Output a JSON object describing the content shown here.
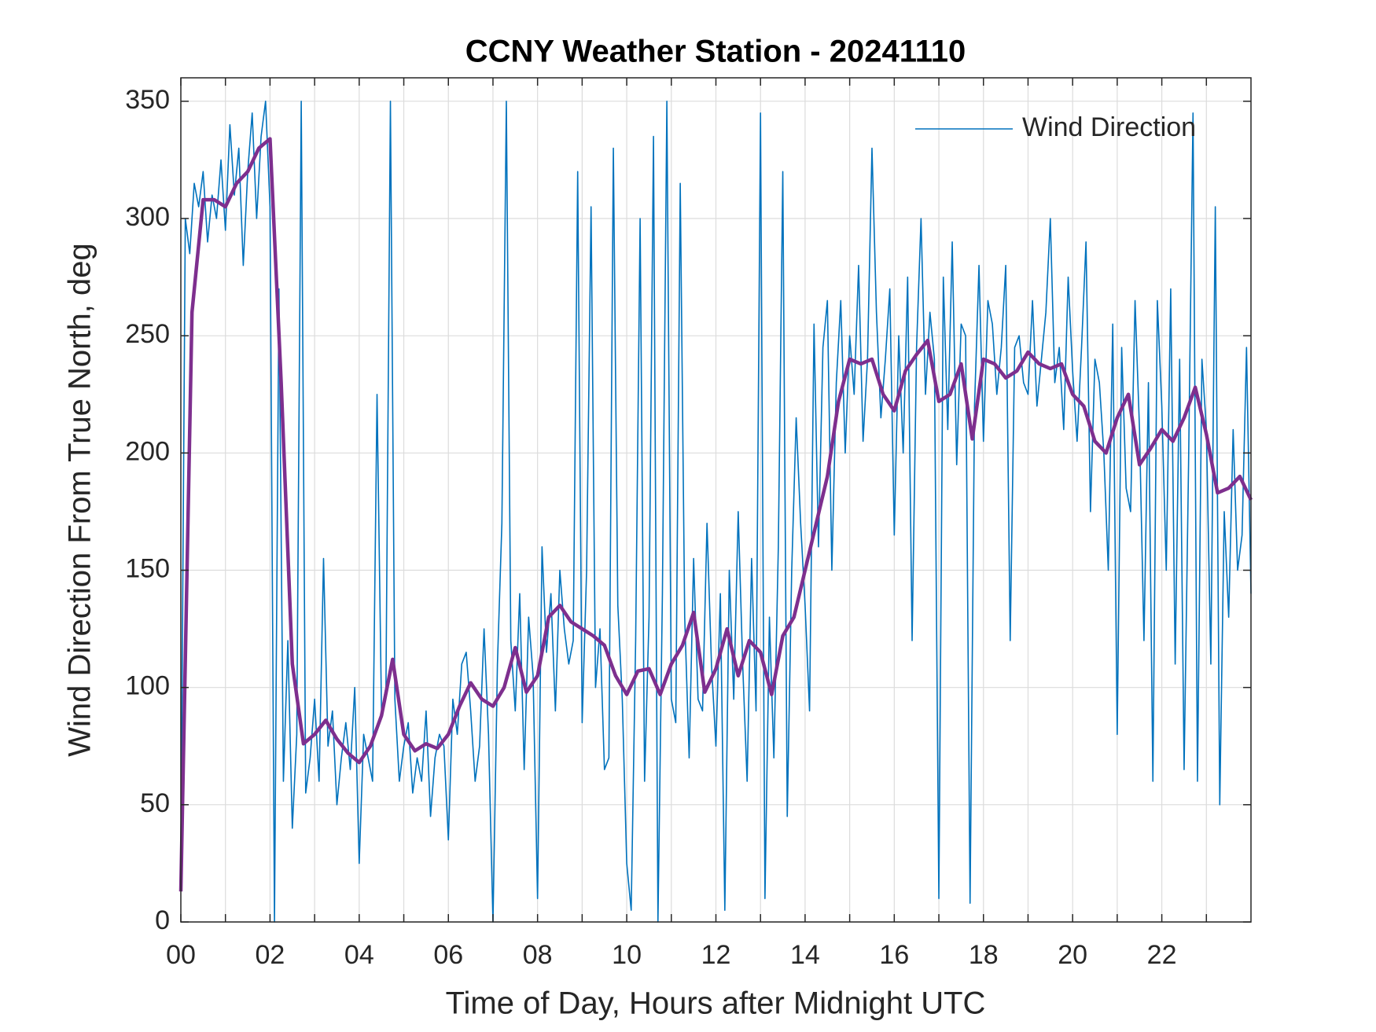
{
  "chart_data": {
    "type": "line",
    "title": "CCNY Weather Station - 20241110",
    "xlabel": "Time of Day, Hours after Midnight UTC",
    "ylabel": "Wind Direction From True North, deg",
    "xlim": [
      0,
      24
    ],
    "ylim": [
      0,
      360
    ],
    "xticks": [
      {
        "value": 0,
        "label": "00"
      },
      {
        "value": 2,
        "label": "02"
      },
      {
        "value": 4,
        "label": "04"
      },
      {
        "value": 6,
        "label": "06"
      },
      {
        "value": 8,
        "label": "08"
      },
      {
        "value": 10,
        "label": "10"
      },
      {
        "value": 12,
        "label": "12"
      },
      {
        "value": 14,
        "label": "14"
      },
      {
        "value": 16,
        "label": "16"
      },
      {
        "value": 18,
        "label": "18"
      },
      {
        "value": 20,
        "label": "20"
      },
      {
        "value": 22,
        "label": "22"
      }
    ],
    "xminorticks": [
      1,
      3,
      5,
      7,
      9,
      11,
      13,
      15,
      17,
      19,
      21,
      23
    ],
    "yticks": [
      0,
      50,
      100,
      150,
      200,
      250,
      300,
      350
    ],
    "grid": true,
    "legend": "northeast",
    "series": [
      {
        "name": "Wind Direction",
        "color": "#0072bd",
        "width": 1.6,
        "x": [
          0,
          0.1,
          0.2,
          0.3,
          0.4,
          0.5,
          0.6,
          0.7,
          0.8,
          0.9,
          1,
          1.1,
          1.2,
          1.3,
          1.4,
          1.5,
          1.6,
          1.7,
          1.8,
          1.9,
          2,
          2.1,
          2.2,
          2.3,
          2.4,
          2.5,
          2.6,
          2.7,
          2.8,
          2.9,
          3,
          3.1,
          3.2,
          3.3,
          3.4,
          3.5,
          3.6,
          3.7,
          3.8,
          3.9,
          4,
          4.1,
          4.2,
          4.3,
          4.4,
          4.5,
          4.6,
          4.7,
          4.8,
          4.9,
          5,
          5.1,
          5.2,
          5.3,
          5.4,
          5.5,
          5.6,
          5.7,
          5.8,
          5.9,
          6,
          6.1,
          6.2,
          6.3,
          6.4,
          6.5,
          6.6,
          6.7,
          6.8,
          6.9,
          7,
          7.1,
          7.2,
          7.3,
          7.4,
          7.5,
          7.6,
          7.7,
          7.8,
          7.9,
          8,
          8.1,
          8.2,
          8.3,
          8.4,
          8.5,
          8.6,
          8.7,
          8.8,
          8.9,
          9,
          9.1,
          9.2,
          9.3,
          9.4,
          9.5,
          9.6,
          9.7,
          9.8,
          9.9,
          10,
          10.1,
          10.2,
          10.3,
          10.4,
          10.5,
          10.6,
          10.7,
          10.8,
          10.9,
          11,
          11.1,
          11.2,
          11.3,
          11.4,
          11.5,
          11.6,
          11.7,
          11.8,
          11.9,
          12,
          12.1,
          12.2,
          12.3,
          12.4,
          12.5,
          12.6,
          12.7,
          12.8,
          12.9,
          13,
          13.1,
          13.2,
          13.3,
          13.4,
          13.5,
          13.6,
          13.7,
          13.8,
          13.9,
          14,
          14.1,
          14.2,
          14.3,
          14.4,
          14.5,
          14.6,
          14.7,
          14.8,
          14.9,
          15,
          15.1,
          15.2,
          15.3,
          15.4,
          15.5,
          15.6,
          15.7,
          15.8,
          15.9,
          16,
          16.1,
          16.2,
          16.3,
          16.4,
          16.5,
          16.6,
          16.7,
          16.8,
          16.9,
          17,
          17.1,
          17.2,
          17.3,
          17.4,
          17.5,
          17.6,
          17.7,
          17.8,
          17.9,
          18,
          18.1,
          18.2,
          18.3,
          18.4,
          18.5,
          18.6,
          18.7,
          18.8,
          18.9,
          19,
          19.1,
          19.2,
          19.3,
          19.4,
          19.5,
          19.6,
          19.7,
          19.8,
          19.9,
          20,
          20.1,
          20.2,
          20.3,
          20.4,
          20.5,
          20.6,
          20.7,
          20.8,
          20.9,
          21,
          21.1,
          21.2,
          21.3,
          21.4,
          21.5,
          21.6,
          21.7,
          21.8,
          21.9,
          22,
          22.1,
          22.2,
          22.3,
          22.4,
          22.5,
          22.6,
          22.7,
          22.8,
          22.9,
          23,
          23.1,
          23.2,
          23.3,
          23.4,
          23.5,
          23.6,
          23.7,
          23.8,
          23.9,
          24
        ],
        "values": [
          20,
          300,
          285,
          315,
          305,
          320,
          290,
          310,
          300,
          325,
          295,
          340,
          310,
          330,
          280,
          320,
          345,
          300,
          335,
          350,
          305,
          0,
          270,
          60,
          120,
          40,
          80,
          350,
          55,
          70,
          95,
          60,
          155,
          75,
          90,
          50,
          70,
          85,
          65,
          100,
          25,
          80,
          70,
          60,
          225,
          90,
          100,
          350,
          95,
          60,
          75,
          85,
          55,
          70,
          60,
          90,
          45,
          70,
          80,
          75,
          35,
          95,
          80,
          110,
          115,
          90,
          60,
          75,
          125,
          80,
          0,
          110,
          170,
          350,
          120,
          90,
          140,
          65,
          130,
          105,
          10,
          160,
          115,
          140,
          90,
          150,
          125,
          110,
          120,
          320,
          85,
          150,
          305,
          100,
          125,
          65,
          70,
          330,
          135,
          95,
          25,
          5,
          120,
          300,
          60,
          130,
          335,
          0,
          140,
          350,
          95,
          85,
          315,
          130,
          70,
          155,
          95,
          90,
          170,
          110,
          75,
          140,
          5,
          150,
          95,
          175,
          110,
          60,
          155,
          90,
          345,
          10,
          130,
          70,
          160,
          320,
          45,
          150,
          215,
          170,
          135,
          90,
          255,
          160,
          245,
          265,
          150,
          230,
          265,
          200,
          250,
          225,
          280,
          205,
          240,
          330,
          260,
          215,
          240,
          270,
          165,
          250,
          200,
          275,
          120,
          245,
          300,
          225,
          260,
          240,
          10,
          275,
          210,
          290,
          195,
          255,
          250,
          8,
          220,
          280,
          205,
          265,
          255,
          225,
          245,
          280,
          120,
          245,
          250,
          230,
          225,
          265,
          220,
          240,
          260,
          300,
          230,
          245,
          210,
          275,
          235,
          205,
          245,
          290,
          175,
          240,
          230,
          200,
          150,
          255,
          80,
          245,
          185,
          175,
          265,
          210,
          120,
          230,
          60,
          265,
          220,
          150,
          270,
          110,
          240,
          65,
          195,
          345,
          60,
          240,
          210,
          110,
          305,
          50,
          175,
          130,
          210,
          150,
          165,
          245,
          140
        ]
      },
      {
        "color": "#7e2f8e",
        "width": 4.5,
        "x": [
          0,
          0.25,
          0.5,
          0.75,
          1,
          1.25,
          1.5,
          1.75,
          2,
          2.25,
          2.5,
          2.75,
          3,
          3.25,
          3.5,
          3.75,
          4,
          4.25,
          4.5,
          4.75,
          5,
          5.25,
          5.5,
          5.75,
          6,
          6.25,
          6.5,
          6.75,
          7,
          7.25,
          7.5,
          7.75,
          8,
          8.25,
          8.5,
          8.75,
          9,
          9.25,
          9.5,
          9.75,
          10,
          10.25,
          10.5,
          10.75,
          11,
          11.25,
          11.5,
          11.75,
          12,
          12.25,
          12.5,
          12.75,
          13,
          13.25,
          13.5,
          13.75,
          14,
          14.25,
          14.5,
          14.75,
          15,
          15.25,
          15.5,
          15.75,
          16,
          16.25,
          16.5,
          16.75,
          17,
          17.25,
          17.5,
          17.75,
          18,
          18.25,
          18.5,
          18.75,
          19,
          19.25,
          19.5,
          19.75,
          20,
          20.25,
          20.5,
          20.75,
          21,
          21.25,
          21.5,
          21.75,
          22,
          22.25,
          22.5,
          22.75,
          23,
          23.25,
          23.5,
          23.75,
          24
        ],
        "values": [
          13,
          260,
          308,
          308,
          305,
          315,
          320,
          330,
          334,
          230,
          110,
          76,
          80,
          86,
          78,
          72,
          68,
          75,
          88,
          112,
          80,
          73,
          76,
          74,
          80,
          92,
          102,
          95,
          92,
          100,
          117,
          98,
          105,
          130,
          135,
          128,
          125,
          122,
          118,
          105,
          97,
          107,
          108,
          97,
          110,
          118,
          132,
          98,
          108,
          125,
          105,
          120,
          115,
          97,
          122,
          130,
          150,
          170,
          190,
          222,
          240,
          238,
          240,
          225,
          218,
          235,
          242,
          248,
          222,
          225,
          238,
          206,
          240,
          238,
          232,
          235,
          243,
          238,
          236,
          238,
          225,
          220,
          205,
          200,
          215,
          225,
          195,
          202,
          210,
          205,
          215,
          228,
          208,
          183,
          185,
          190,
          180
        ]
      }
    ]
  }
}
